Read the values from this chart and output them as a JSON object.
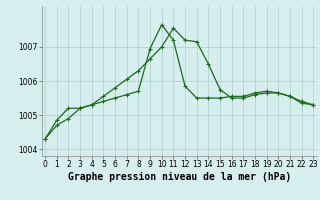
{
  "xlabel": "Graphe pression niveau de la mer (hPa)",
  "hours": [
    0,
    1,
    2,
    3,
    4,
    5,
    6,
    7,
    8,
    9,
    10,
    11,
    12,
    13,
    14,
    15,
    16,
    17,
    18,
    19,
    20,
    21,
    22,
    23
  ],
  "line1": [
    1004.3,
    1004.7,
    1004.9,
    1005.2,
    1005.3,
    1005.55,
    1005.8,
    1006.05,
    1006.3,
    1006.65,
    1007.0,
    1007.55,
    1007.2,
    1007.15,
    1006.5,
    1005.75,
    1005.5,
    1005.5,
    1005.6,
    1005.65,
    1005.65,
    1005.55,
    1005.4,
    1005.3
  ],
  "line2": [
    1004.3,
    1004.85,
    1005.2,
    1005.2,
    1005.3,
    1005.4,
    1005.5,
    1005.6,
    1005.7,
    1006.95,
    1007.65,
    1007.2,
    1005.85,
    1005.5,
    1005.5,
    1005.5,
    1005.55,
    1005.55,
    1005.65,
    1005.7,
    1005.65,
    1005.55,
    1005.35,
    1005.3
  ],
  "line_color": "#1a6b1a",
  "bg_color": "#d6eeee",
  "grid_color": "#aacccc",
  "ylim": [
    1003.8,
    1008.2
  ],
  "yticks": [
    1004,
    1005,
    1006,
    1007
  ],
  "xticks": [
    0,
    1,
    2,
    3,
    4,
    5,
    6,
    7,
    8,
    9,
    10,
    11,
    12,
    13,
    14,
    15,
    16,
    17,
    18,
    19,
    20,
    21,
    22,
    23
  ],
  "tick_fontsize": 5.5,
  "xlabel_fontsize": 7,
  "marker": "+",
  "marker_size": 3,
  "linewidth": 0.9
}
